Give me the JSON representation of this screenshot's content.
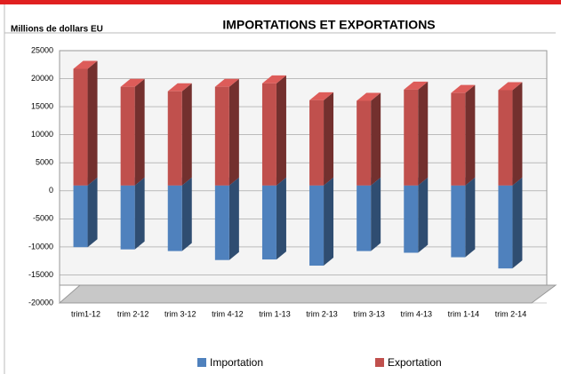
{
  "chart_data": {
    "type": "bar3d",
    "title": "IMPORTATIONS ET EXPORTATIONS",
    "y_label": "Millions de dollars EU",
    "categories": [
      "trim1-12",
      "trim 2-12",
      "trim 3-12",
      "trim 4-12",
      "trim 1-13",
      "trim 2-13",
      "trim 3-13",
      "trim 4-13",
      "trim 1-14",
      "trim 2-14"
    ],
    "series": [
      {
        "name": "Importation",
        "color": "#4f81bd",
        "values": [
          -11000,
          -11400,
          -11700,
          -13300,
          -13200,
          -14300,
          -11700,
          -12000,
          -12800,
          -14800
        ]
      },
      {
        "name": "Exportation",
        "color": "#c0504d",
        "values": [
          20800,
          17600,
          16800,
          17600,
          18200,
          15200,
          15100,
          17100,
          16500,
          17000
        ]
      }
    ],
    "ylim": [
      -20000,
      25000
    ],
    "yticks": [
      -20000,
      -15000,
      -10000,
      -5000,
      0,
      5000,
      10000,
      15000,
      20000,
      25000
    ],
    "grid": true
  }
}
